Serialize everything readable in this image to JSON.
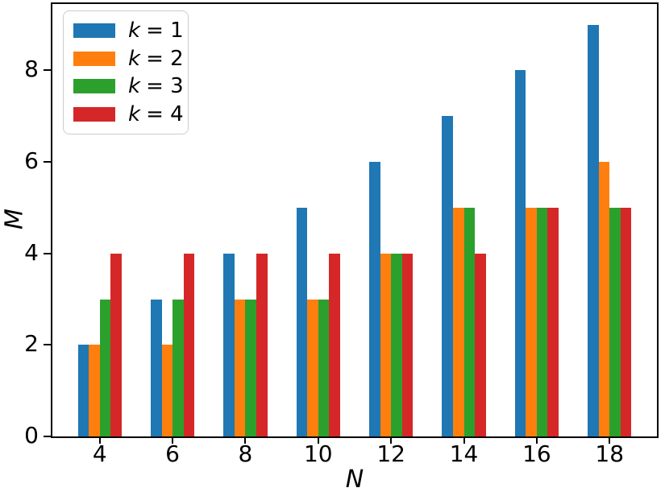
{
  "figure": {
    "background": "#ffffff"
  },
  "axes": {
    "xlabel": "N",
    "ylabel": "M",
    "xticks": [
      4,
      6,
      8,
      10,
      12,
      14,
      16,
      18
    ],
    "yticks": [
      0,
      2,
      4,
      6,
      8
    ],
    "spine_color": "#000000"
  },
  "legend": {
    "position": "upper left",
    "items": [
      {
        "var": "k",
        "eq": "= 1",
        "color": "#1f77b4"
      },
      {
        "var": "k",
        "eq": "= 2",
        "color": "#ff7f0e"
      },
      {
        "var": "k",
        "eq": "= 3",
        "color": "#2ca02c"
      },
      {
        "var": "k",
        "eq": "= 4",
        "color": "#d62728"
      }
    ]
  },
  "chart_data": {
    "type": "bar",
    "title": "",
    "xlabel": "N",
    "ylabel": "M",
    "categories": [
      4,
      6,
      8,
      10,
      12,
      14,
      16,
      18
    ],
    "series": [
      {
        "name": "k = 1",
        "color": "#1f77b4",
        "values": [
          2,
          3,
          4,
          5,
          6,
          7,
          8,
          9
        ]
      },
      {
        "name": "k = 2",
        "color": "#ff7f0e",
        "values": [
          2,
          2,
          3,
          3,
          4,
          5,
          5,
          6
        ]
      },
      {
        "name": "k = 3",
        "color": "#2ca02c",
        "values": [
          3,
          3,
          3,
          3,
          4,
          5,
          5,
          5
        ]
      },
      {
        "name": "k = 4",
        "color": "#d62728",
        "values": [
          4,
          4,
          4,
          4,
          4,
          4,
          5,
          5
        ]
      }
    ],
    "xlim": [
      2.7,
      19.3
    ],
    "ylim": [
      0,
      9.45
    ],
    "yticks": [
      0,
      2,
      4,
      6,
      8
    ],
    "bar_width": 0.3,
    "grid": false,
    "legend_position": "upper left"
  }
}
